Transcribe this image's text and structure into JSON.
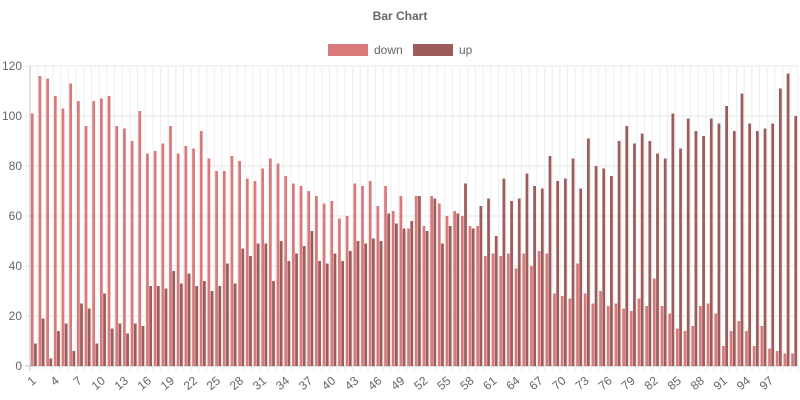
{
  "chart_data": {
    "type": "bar",
    "title": "Bar Chart",
    "xlabel": "",
    "ylabel": "",
    "ylim": [
      0,
      120
    ],
    "yticks": [
      0,
      20,
      40,
      60,
      80,
      100,
      120
    ],
    "grid": true,
    "legend_position": "top-center",
    "categories": [
      "1",
      "2",
      "3",
      "4",
      "5",
      "6",
      "7",
      "8",
      "9",
      "10",
      "11",
      "12",
      "13",
      "14",
      "15",
      "16",
      "17",
      "18",
      "19",
      "20",
      "21",
      "22",
      "23",
      "24",
      "25",
      "26",
      "27",
      "28",
      "29",
      "30",
      "31",
      "32",
      "33",
      "34",
      "35",
      "36",
      "37",
      "38",
      "39",
      "40",
      "41",
      "42",
      "43",
      "44",
      "45",
      "46",
      "47",
      "48",
      "49",
      "50",
      "51",
      "52",
      "53",
      "54",
      "55",
      "56",
      "57",
      "58",
      "59",
      "60",
      "61",
      "62",
      "63",
      "64",
      "65",
      "66",
      "67",
      "68",
      "69",
      "70",
      "71",
      "72",
      "73",
      "74",
      "75",
      "76",
      "77",
      "78",
      "79",
      "80",
      "81",
      "82",
      "83",
      "84",
      "85",
      "86",
      "87",
      "88",
      "89",
      "90",
      "91",
      "92",
      "93",
      "94",
      "95",
      "96",
      "97",
      "98",
      "99",
      "100"
    ],
    "visible_tick_labels": [
      "1",
      "4",
      "7",
      "10",
      "13",
      "16",
      "19",
      "22",
      "25",
      "28",
      "31",
      "34",
      "37",
      "40",
      "43",
      "46",
      "49",
      "52",
      "55",
      "58",
      "61",
      "64",
      "67",
      "70",
      "73",
      "76",
      "79",
      "82",
      "85",
      "88",
      "91",
      "94",
      "97"
    ],
    "series": [
      {
        "name": "down",
        "color": "#d97a7a",
        "values": [
          101,
          116,
          115,
          108,
          103,
          113,
          106,
          96,
          106,
          107,
          108,
          96,
          95,
          90,
          102,
          85,
          86,
          89,
          96,
          85,
          88,
          87,
          94,
          83,
          78,
          78,
          84,
          82,
          75,
          74,
          79,
          83,
          81,
          76,
          73,
          72,
          70,
          68,
          65,
          66,
          59,
          60,
          73,
          72,
          74,
          64,
          72,
          62,
          68,
          55,
          68,
          56,
          68,
          65,
          60,
          62,
          60,
          56,
          56,
          44,
          45,
          44,
          45,
          39,
          45,
          40,
          46,
          45,
          29,
          28,
          27,
          41,
          29,
          25,
          30,
          24,
          25,
          23,
          22,
          27,
          24,
          35,
          24,
          21,
          15,
          14,
          16,
          24,
          25,
          21,
          8,
          14,
          18,
          14,
          8,
          16,
          7,
          6,
          5,
          5
        ]
      },
      {
        "name": "up",
        "color": "#9c5c5c",
        "values": [
          9,
          19,
          3,
          14,
          17,
          6,
          25,
          23,
          9,
          29,
          15,
          17,
          13,
          17,
          16,
          32,
          32,
          31,
          38,
          33,
          37,
          32,
          34,
          30,
          32,
          41,
          33,
          47,
          44,
          49,
          49,
          34,
          50,
          42,
          45,
          48,
          54,
          42,
          41,
          45,
          42,
          46,
          50,
          49,
          51,
          50,
          61,
          57,
          55,
          58,
          68,
          54,
          67,
          49,
          56,
          61,
          73,
          55,
          64,
          67,
          52,
          75,
          66,
          67,
          77,
          72,
          71,
          84,
          74,
          75,
          83,
          71,
          91,
          80,
          79,
          76,
          90,
          96,
          89,
          93,
          90,
          85,
          83,
          101,
          87,
          99,
          94,
          92,
          99,
          97,
          104,
          94,
          109,
          97,
          94,
          95,
          97,
          111,
          117,
          100
        ]
      }
    ]
  }
}
